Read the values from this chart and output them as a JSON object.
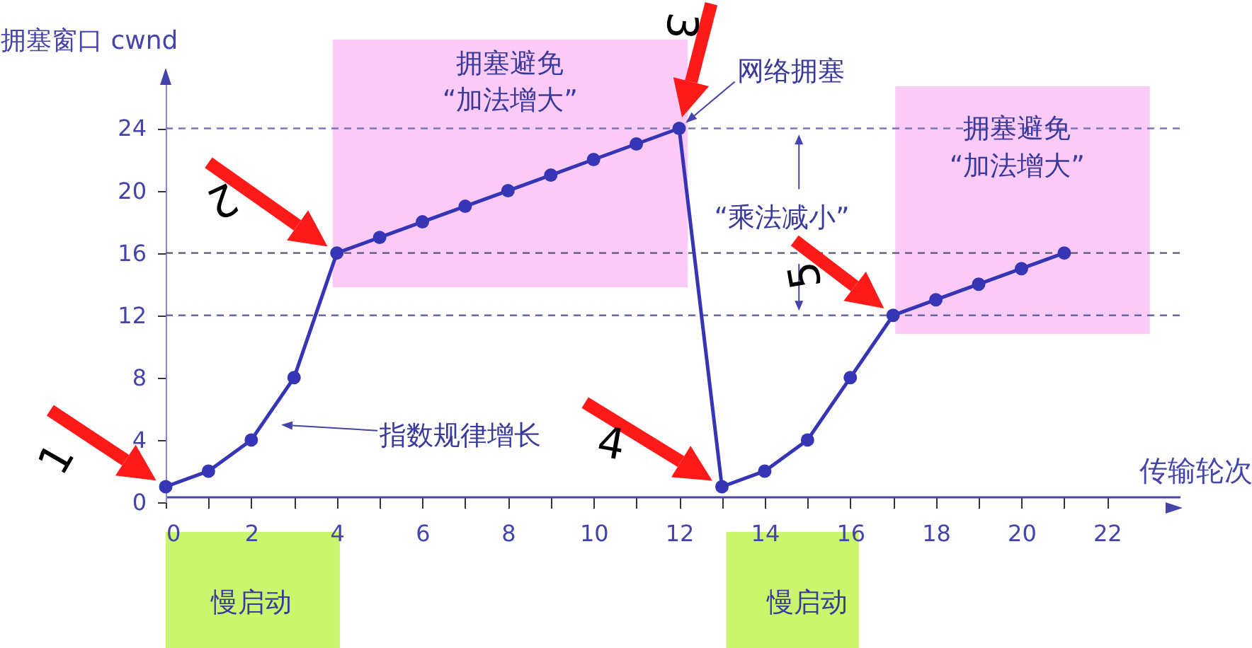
{
  "chart_data": {
    "type": "line",
    "xlabel": "传输轮次",
    "ylabel": "拥塞窗口 cwnd",
    "x": [
      0,
      1,
      2,
      3,
      4,
      5,
      6,
      7,
      8,
      9,
      10,
      11,
      12,
      13,
      14,
      15,
      16,
      17,
      18,
      19,
      20,
      21
    ],
    "series": [
      {
        "color": "#3535b5",
        "values": [
          1,
          2,
          4,
          8,
          16,
          17,
          18,
          19,
          20,
          21,
          22,
          23,
          24,
          1,
          2,
          4,
          8,
          12,
          13,
          14,
          15,
          16
        ]
      }
    ],
    "xlim": [
      0,
      23.7
    ],
    "ylim": [
      0,
      27.7
    ],
    "xticks": [
      0,
      {
        "value": 1,
        "label": null
      },
      2,
      {
        "value": 3,
        "label": null
      },
      4,
      {
        "value": 5,
        "label": null
      },
      6,
      {
        "value": 7,
        "label": null
      },
      8,
      {
        "value": 9,
        "label": null
      },
      10,
      {
        "value": 11,
        "label": null
      },
      12,
      {
        "value": 13,
        "label": null
      },
      14,
      {
        "value": 15,
        "label": null
      },
      16,
      {
        "value": 17,
        "label": null
      },
      18,
      {
        "value": 19,
        "label": null
      },
      20,
      {
        "value": 21,
        "label": null
      },
      22
    ],
    "yticks": [
      0,
      4,
      8,
      12,
      16,
      20,
      24
    ],
    "marker": "circle",
    "grid": false,
    "ref_lines": [
      {
        "axis": "y",
        "value": 24,
        "line_style": "dashed",
        "color": "#7777bb"
      },
      {
        "axis": "y",
        "value": 16,
        "line_style": "dashed",
        "color": "#555577"
      },
      {
        "axis": "y",
        "value": 12,
        "line_style": "dashed",
        "color": "#6666aa"
      }
    ],
    "annotations": [
      "拥塞避免",
      "“加法增大”",
      "拥塞避免",
      "“加法增大”",
      {
        "text": "网络拥塞",
        "x": 12,
        "y": 24
      },
      "“乘法减小”",
      "指数规律增长",
      {
        "text": "1",
        "x": 0,
        "y": 1
      },
      {
        "text": "2",
        "x": 4,
        "y": 16
      },
      {
        "text": "3",
        "x": 12,
        "y": 24
      },
      {
        "text": "4",
        "x": 13,
        "y": 1
      },
      {
        "text": "5",
        "x": 17,
        "y": 12
      },
      "慢启动",
      "慢启动"
    ]
  }
}
